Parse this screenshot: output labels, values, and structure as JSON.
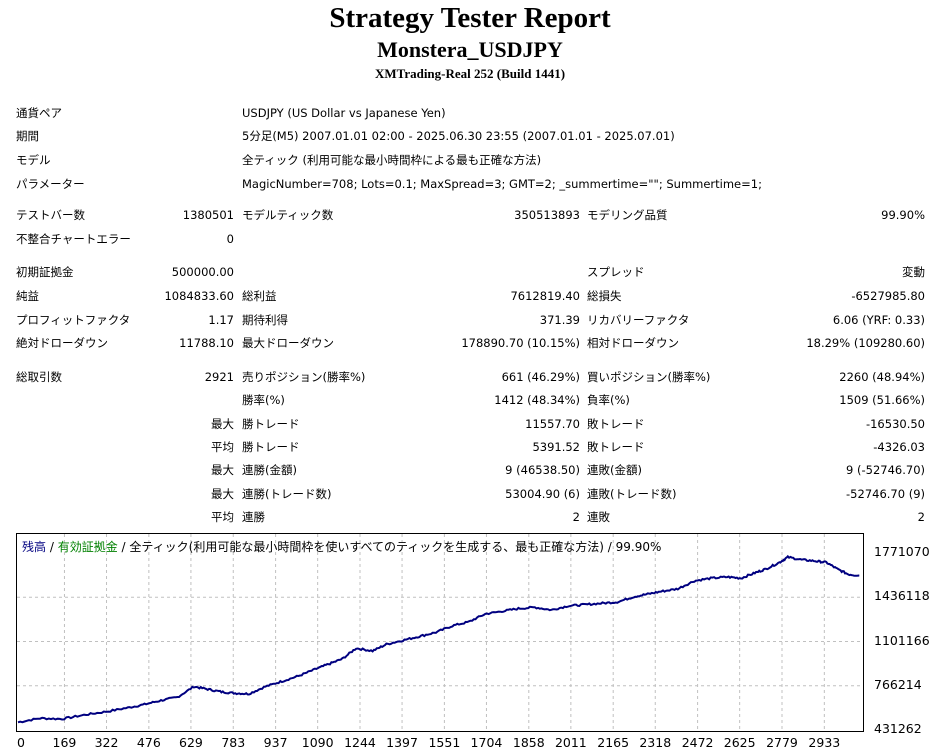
{
  "header": {
    "title": "Strategy Tester Report",
    "subtitle": "Monstera_USDJPY",
    "server": "XMTrading-Real 252 (Build 1441)"
  },
  "info": {
    "symbol_label": "通貨ペア",
    "symbol_value": "USDJPY (US Dollar vs Japanese Yen)",
    "period_label": "期間",
    "period_value": "5分足(M5) 2007.01.01 02:00 - 2025.06.30 23:55 (2007.01.01 - 2025.07.01)",
    "model_label": "モデル",
    "model_value": "全ティック (利用可能な最小時間枠による最も正確な方法)",
    "params_label": "パラメーター",
    "params_value": "MagicNumber=708; Lots=0.1; MaxSpread=3; GMT=2; _summertime=\"\"; Summertime=1;"
  },
  "stats": {
    "bars_label": "テストバー数",
    "bars_value": "1380501",
    "ticks_label": "モデルティック数",
    "ticks_value": "350513893",
    "quality_label": "モデリング品質",
    "quality_value": "99.90%",
    "mismatch_label": "不整合チャートエラー",
    "mismatch_value": "0",
    "deposit_label": "初期証拠金",
    "deposit_value": "500000.00",
    "spread_label": "スプレッド",
    "spread_value": "変動",
    "net_label": "純益",
    "net_value": "1084833.60",
    "gross_profit_label": "総利益",
    "gross_profit_value": "7612819.40",
    "gross_loss_label": "総損失",
    "gross_loss_value": "-6527985.80",
    "pf_label": "プロフィットファクタ",
    "pf_value": "1.17",
    "expected_label": "期待利得",
    "expected_value": "371.39",
    "recovery_label": "リカバリーファクタ",
    "recovery_value": "6.06 (YRF: 0.33)",
    "abs_dd_label": "絶対ドローダウン",
    "abs_dd_value": "11788.10",
    "max_dd_label": "最大ドローダウン",
    "max_dd_value": "178890.70 (10.15%)",
    "rel_dd_label": "相対ドローダウン",
    "rel_dd_value": "18.29% (109280.60)",
    "total_trades_label": "総取引数",
    "total_trades_value": "2921",
    "short_label": "売りポジション(勝率%)",
    "short_value": "661 (46.29%)",
    "long_label": "買いポジション(勝率%)",
    "long_value": "2260 (48.94%)",
    "win_rate_label": "勝率(%)",
    "win_rate_value": "1412 (48.34%)",
    "loss_rate_label": "負率(%)",
    "loss_rate_value": "1509 (51.66%)",
    "largest_prefix": "最大",
    "largest_win_label": "勝トレード",
    "largest_win_value": "11557.70",
    "largest_loss_label": "敗トレード",
    "largest_loss_value": "-16530.50",
    "average_prefix": "平均",
    "avg_win_label": "勝トレード",
    "avg_win_value": "5391.52",
    "avg_loss_label": "敗トレード",
    "avg_loss_value": "-4326.03",
    "max_prefix_1": "最大",
    "max_cons_wins_label": "連勝(金額)",
    "max_cons_wins_value": "9 (46538.50)",
    "max_cons_losses_label": "連敗(金額)",
    "max_cons_losses_value": "9 (-52746.70)",
    "max_prefix_2": "最大",
    "max_cons_profit_label": "連勝(トレード数)",
    "max_cons_profit_value": "53004.90 (6)",
    "max_cons_loss_label": "連敗(トレード数)",
    "max_cons_loss_value": "-52746.70 (9)",
    "avg_prefix_2": "平均",
    "avg_cons_wins_label": "連勝",
    "avg_cons_wins_value": "2",
    "avg_cons_losses_label": "連敗",
    "avg_cons_losses_value": "2"
  },
  "chart_data": {
    "type": "line",
    "legend_balance": "残高",
    "legend_sep1": " / ",
    "legend_equity": "有効証拠金",
    "legend_sep2": " / ",
    "legend_rest": "全ティック(利用可能な最小時間枠を使いすべてのティックを生成する、最も正確な方法) / 99.90%",
    "colors": {
      "balance": "#000080",
      "equity": "#008000",
      "grid": "#c0c0c0"
    },
    "grid": true,
    "ylim": [
      431262,
      1771070
    ],
    "yticks": [
      "1771070",
      "1436118",
      "1101166",
      "766214",
      "431262"
    ],
    "xticks": [
      "0",
      "169",
      "322",
      "476",
      "629",
      "783",
      "937",
      "1090",
      "1244",
      "1397",
      "1551",
      "1704",
      "1858",
      "2011",
      "2165",
      "2318",
      "2472",
      "2625",
      "2779",
      "2933"
    ],
    "xlim": [
      0,
      3070
    ],
    "series": [
      {
        "name": "残高",
        "x": [
          0,
          80,
          160,
          240,
          320,
          400,
          460,
          520,
          580,
          640,
          690,
          740,
          790,
          840,
          900,
          960,
          1020,
          1080,
          1130,
          1180,
          1230,
          1290,
          1340,
          1400,
          1460,
          1520,
          1580,
          1640,
          1700,
          1760,
          1820,
          1880,
          1940,
          2000,
          2060,
          2120,
          2180,
          2240,
          2290,
          2340,
          2400,
          2460,
          2520,
          2580,
          2630,
          2680,
          2720,
          2770,
          2800,
          2850,
          2900,
          2940,
          2980,
          3020,
          3060
        ],
        "y": [
          490000,
          520000,
          515000,
          545000,
          570000,
          600000,
          625000,
          655000,
          680000,
          760000,
          740000,
          720000,
          710000,
          705000,
          760000,
          800000,
          840000,
          890000,
          930000,
          970000,
          1050000,
          1030000,
          1080000,
          1110000,
          1140000,
          1170000,
          1220000,
          1250000,
          1310000,
          1330000,
          1350000,
          1360000,
          1340000,
          1370000,
          1380000,
          1390000,
          1400000,
          1440000,
          1460000,
          1480000,
          1500000,
          1560000,
          1580000,
          1590000,
          1580000,
          1620000,
          1650000,
          1700000,
          1740000,
          1720000,
          1710000,
          1700000,
          1650000,
          1610000,
          1600000
        ]
      }
    ]
  }
}
